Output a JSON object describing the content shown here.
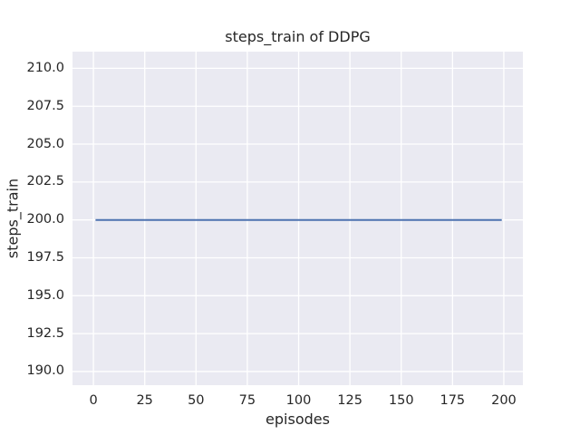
{
  "chart_data": {
    "type": "line",
    "title": "steps_train of DDPG",
    "xlabel": "episodes",
    "ylabel": "steps_train",
    "xlim": [
      -10.2,
      209.3
    ],
    "ylim": [
      189.1,
      211.1
    ],
    "xticks": [
      0,
      25,
      50,
      75,
      100,
      125,
      150,
      175,
      200
    ],
    "xtick_labels": [
      "0",
      "25",
      "50",
      "75",
      "100",
      "125",
      "150",
      "175",
      "200"
    ],
    "yticks": [
      190.0,
      192.5,
      195.0,
      197.5,
      200.0,
      202.5,
      205.0,
      207.5,
      210.0
    ],
    "ytick_labels": [
      "190.0",
      "192.5",
      "195.0",
      "197.5",
      "200.0",
      "202.5",
      "205.0",
      "207.5",
      "210.0"
    ],
    "grid": true,
    "legend": false,
    "series": [
      {
        "name": "steps_train",
        "x": [
          1,
          199
        ],
        "y": [
          200,
          200
        ],
        "color": "#4c72b0"
      }
    ],
    "colors": {
      "figure_background": "#ffffff",
      "plot_background": "#eaeaf2",
      "grid": "#ffffff",
      "text": "#262626",
      "line": "#4c72b0"
    }
  }
}
